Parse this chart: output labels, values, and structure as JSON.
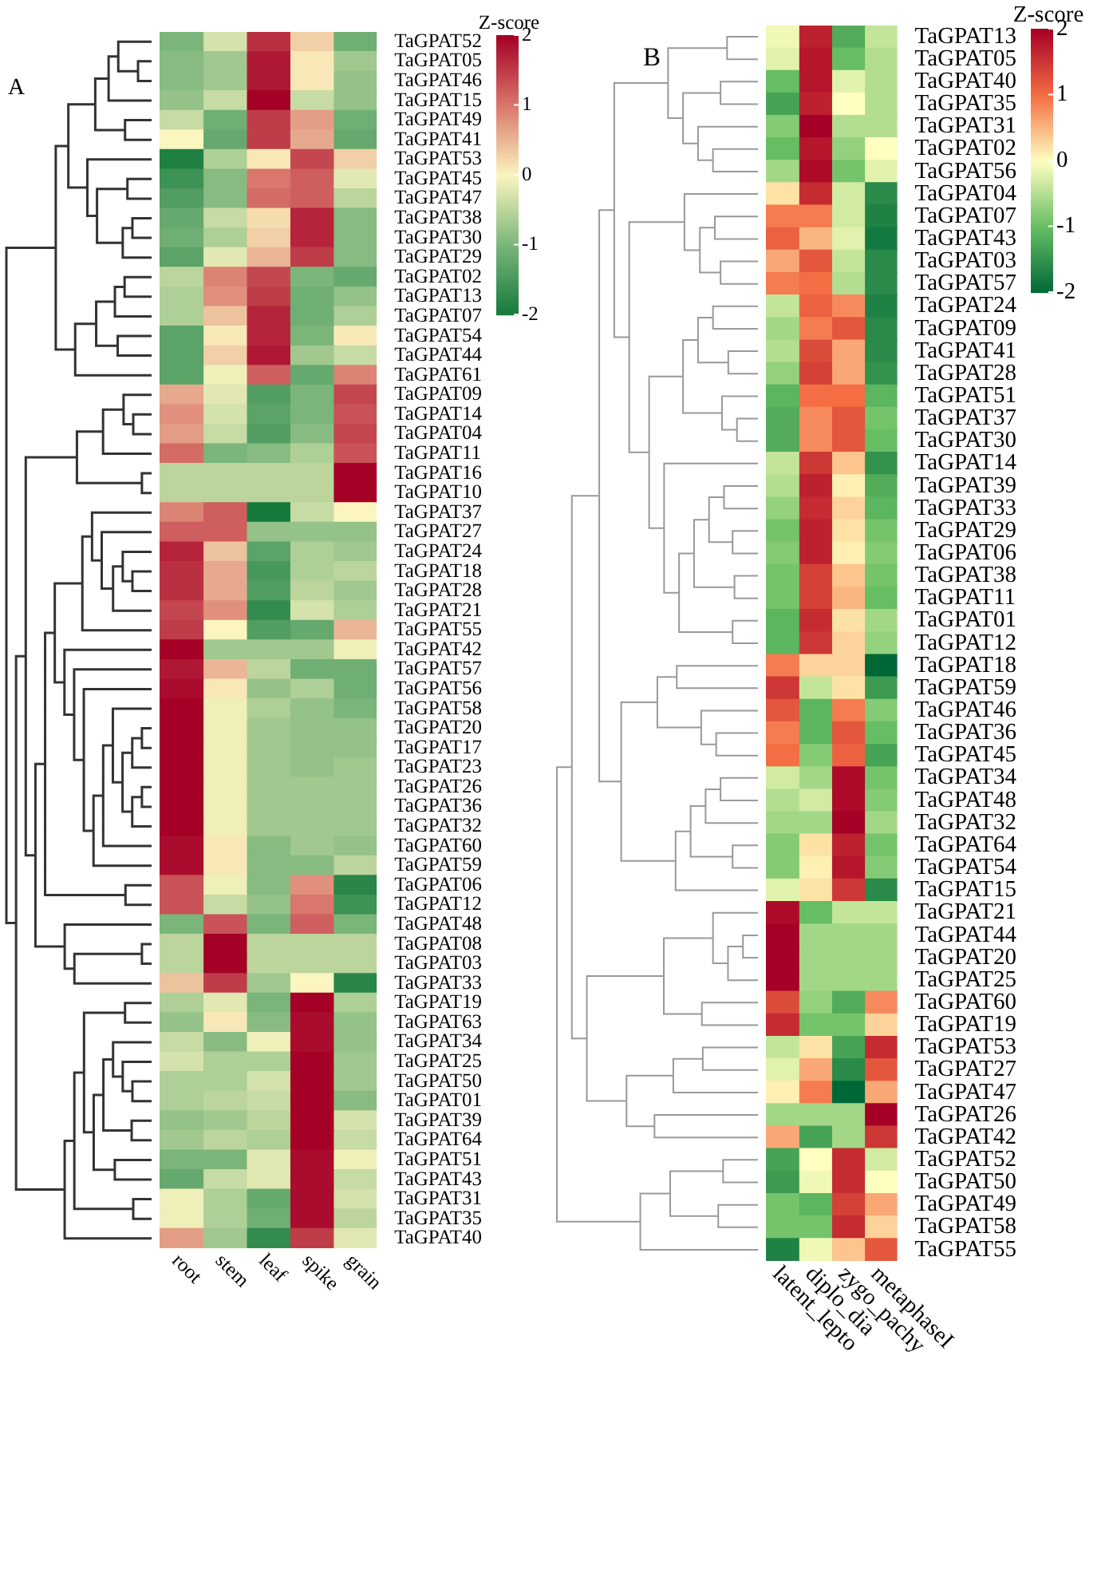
{
  "chart_data": [
    {
      "type": "heatmap",
      "title": "A",
      "clabel": "Z-score",
      "clim": [
        -2,
        2
      ],
      "cticks": [
        -2,
        -1,
        0,
        1,
        2
      ],
      "colors": [
        "#157a3c",
        "#7ab57a",
        "#fbf5c0",
        "#d9776c",
        "#a50026"
      ],
      "categories": [
        "root",
        "stem",
        "leaf",
        "spike",
        "grain"
      ],
      "y_categories": [
        "TaGPAT52",
        "TaGPAT05",
        "TaGPAT46",
        "TaGPAT15",
        "TaGPAT49",
        "TaGPAT41",
        "TaGPAT53",
        "TaGPAT45",
        "TaGPAT47",
        "TaGPAT38",
        "TaGPAT30",
        "TaGPAT29",
        "TaGPAT02",
        "TaGPAT13",
        "TaGPAT07",
        "TaGPAT54",
        "TaGPAT44",
        "TaGPAT61",
        "TaGPAT09",
        "TaGPAT14",
        "TaGPAT04",
        "TaGPAT11",
        "TaGPAT16",
        "TaGPAT10",
        "TaGPAT37",
        "TaGPAT27",
        "TaGPAT24",
        "TaGPAT18",
        "TaGPAT28",
        "TaGPAT21",
        "TaGPAT55",
        "TaGPAT42",
        "TaGPAT57",
        "TaGPAT56",
        "TaGPAT58",
        "TaGPAT20",
        "TaGPAT17",
        "TaGPAT23",
        "TaGPAT26",
        "TaGPAT36",
        "TaGPAT32",
        "TaGPAT60",
        "TaGPAT59",
        "TaGPAT06",
        "TaGPAT12",
        "TaGPAT48",
        "TaGPAT08",
        "TaGPAT03",
        "TaGPAT33",
        "TaGPAT19",
        "TaGPAT63",
        "TaGPAT34",
        "TaGPAT25",
        "TaGPAT50",
        "TaGPAT01",
        "TaGPAT39",
        "TaGPAT64",
        "TaGPAT51",
        "TaGPAT43",
        "TaGPAT31",
        "TaGPAT35",
        "TaGPAT40"
      ],
      "cells": [
        [
          -1,
          -0.3,
          1.6,
          0.3,
          -1.1
        ],
        [
          -0.9,
          -0.7,
          1.8,
          0.1,
          -0.7
        ],
        [
          -0.9,
          -0.7,
          1.8,
          0.1,
          -0.8
        ],
        [
          -0.8,
          -0.4,
          2,
          -0.4,
          -0.8
        ],
        [
          -0.4,
          -1.1,
          1.5,
          0.7,
          -1.1
        ],
        [
          0,
          -1.2,
          1.5,
          0.6,
          -1.2
        ],
        [
          -1.9,
          -0.6,
          0.1,
          1.4,
          0.3
        ],
        [
          -1.6,
          -0.9,
          1,
          1.2,
          -0.2
        ],
        [
          -1.4,
          -0.9,
          1.1,
          1.2,
          -0.5
        ],
        [
          -1.2,
          -0.4,
          0.2,
          1.7,
          -0.9
        ],
        [
          -1.1,
          -0.6,
          0.3,
          1.7,
          -0.9
        ],
        [
          -1.3,
          -0.2,
          0.5,
          1.5,
          -0.9
        ],
        [
          -0.5,
          0.9,
          1.4,
          -1,
          -1.2
        ],
        [
          -0.6,
          0.8,
          1.5,
          -1.1,
          -0.8
        ],
        [
          -0.6,
          0.4,
          1.7,
          -1.1,
          -0.6
        ],
        [
          -1.3,
          0.1,
          1.7,
          -1,
          0.1
        ],
        [
          -1.3,
          0.3,
          1.8,
          -0.7,
          -0.4
        ],
        [
          -1.3,
          -0.1,
          1.2,
          -1.2,
          0.9
        ],
        [
          0.6,
          -0.2,
          -1.4,
          -1,
          1.4
        ],
        [
          0.8,
          -0.3,
          -1.3,
          -1,
          1.3
        ],
        [
          0.7,
          -0.4,
          -1.4,
          -0.9,
          1.4
        ],
        [
          1.1,
          -1,
          -0.9,
          -0.6,
          1.3
        ],
        [
          -0.5,
          -0.5,
          -0.5,
          -0.5,
          2
        ],
        [
          -0.5,
          -0.5,
          -0.5,
          -0.5,
          2
        ],
        [
          0.9,
          1.2,
          -2,
          -0.4,
          0
        ],
        [
          1.2,
          1.2,
          -0.8,
          -0.8,
          -0.8
        ],
        [
          1.7,
          0.4,
          -1.3,
          -0.6,
          -0.7
        ],
        [
          1.6,
          0.6,
          -1.5,
          -0.6,
          -0.5
        ],
        [
          1.6,
          0.6,
          -1.4,
          -0.5,
          -0.7
        ],
        [
          1.4,
          0.8,
          -1.7,
          -0.3,
          -0.6
        ],
        [
          1.5,
          0,
          -1.4,
          -1.2,
          0.5
        ],
        [
          2,
          -0.7,
          -0.7,
          -0.7,
          -0.1
        ],
        [
          1.8,
          0.5,
          -0.5,
          -1.1,
          -1.1
        ],
        [
          1.9,
          0.1,
          -0.8,
          -0.6,
          -1.1
        ],
        [
          2,
          -0.1,
          -0.6,
          -0.8,
          -1
        ],
        [
          2,
          -0.1,
          -0.7,
          -0.8,
          -0.8
        ],
        [
          2,
          -0.1,
          -0.7,
          -0.8,
          -0.8
        ],
        [
          2,
          -0.1,
          -0.7,
          -0.8,
          -0.7
        ],
        [
          2,
          -0.1,
          -0.7,
          -0.7,
          -0.7
        ],
        [
          2,
          -0.1,
          -0.7,
          -0.7,
          -0.7
        ],
        [
          2,
          -0.1,
          -0.7,
          -0.7,
          -0.7
        ],
        [
          1.9,
          0.1,
          -0.9,
          -0.7,
          -0.8
        ],
        [
          1.9,
          0.1,
          -0.9,
          -0.9,
          -0.5
        ],
        [
          1.3,
          -0.1,
          -0.9,
          0.8,
          -1.8
        ],
        [
          1.3,
          -0.4,
          -0.8,
          1,
          -1.6
        ],
        [
          -1,
          1.3,
          -1,
          1.2,
          -1
        ],
        [
          -0.5,
          2,
          -0.5,
          -0.5,
          -0.5
        ],
        [
          -0.5,
          2,
          -0.5,
          -0.5,
          -0.5
        ],
        [
          0.4,
          1.5,
          -0.7,
          0,
          -1.8
        ],
        [
          -0.6,
          -0.2,
          -1,
          2,
          -0.6
        ],
        [
          -0.8,
          0.1,
          -0.9,
          1.9,
          -0.8
        ],
        [
          -0.4,
          -0.9,
          -0.1,
          1.9,
          -0.8
        ],
        [
          -0.3,
          -0.6,
          -0.6,
          2,
          -0.7
        ],
        [
          -0.6,
          -0.6,
          -0.3,
          2,
          -0.7
        ],
        [
          -0.6,
          -0.5,
          -0.4,
          2,
          -0.9
        ],
        [
          -0.8,
          -0.7,
          -0.5,
          2,
          -0.3
        ],
        [
          -0.7,
          -0.5,
          -0.6,
          2,
          -0.4
        ],
        [
          -1,
          -1,
          -0.2,
          1.9,
          -0.1
        ],
        [
          -1.2,
          -0.4,
          -0.2,
          1.9,
          -0.4
        ],
        [
          -0.1,
          -0.6,
          -1.2,
          1.9,
          -0.3
        ],
        [
          -0.1,
          -0.6,
          -1.1,
          1.9,
          -0.5
        ],
        [
          0.7,
          -0.7,
          -1.7,
          1.5,
          -0.2
        ]
      ]
    },
    {
      "type": "heatmap",
      "title": "B",
      "clabel": "Z-score",
      "clim": [
        -2,
        2
      ],
      "cticks": [
        -2,
        -1,
        0,
        1,
        2
      ],
      "colors": [
        "#006837",
        "#66bd63",
        "#ffffbf",
        "#f46d43",
        "#a50026"
      ],
      "categories": [
        "latent_lepto",
        "diplo_dia",
        "zygo_pachy",
        "metaphaseI"
      ],
      "y_categories": [
        "TaGPAT13",
        "TaGPAT05",
        "TaGPAT40",
        "TaGPAT35",
        "TaGPAT31",
        "TaGPAT02",
        "TaGPAT56",
        "TaGPAT04",
        "TaGPAT07",
        "TaGPAT43",
        "TaGPAT03",
        "TaGPAT57",
        "TaGPAT24",
        "TaGPAT09",
        "TaGPAT41",
        "TaGPAT28",
        "TaGPAT51",
        "TaGPAT37",
        "TaGPAT30",
        "TaGPAT14",
        "TaGPAT39",
        "TaGPAT33",
        "TaGPAT29",
        "TaGPAT06",
        "TaGPAT38",
        "TaGPAT11",
        "TaGPAT01",
        "TaGPAT12",
        "TaGPAT18",
        "TaGPAT59",
        "TaGPAT46",
        "TaGPAT36",
        "TaGPAT45",
        "TaGPAT34",
        "TaGPAT48",
        "TaGPAT32",
        "TaGPAT64",
        "TaGPAT54",
        "TaGPAT15",
        "TaGPAT21",
        "TaGPAT44",
        "TaGPAT20",
        "TaGPAT25",
        "TaGPAT60",
        "TaGPAT19",
        "TaGPAT53",
        "TaGPAT27",
        "TaGPAT47",
        "TaGPAT26",
        "TaGPAT42",
        "TaGPAT52",
        "TaGPAT50",
        "TaGPAT49",
        "TaGPAT58",
        "TaGPAT55"
      ],
      "cells": [
        [
          -0.1,
          1.7,
          -1.2,
          -0.4
        ],
        [
          -0.2,
          1.8,
          -1,
          -0.5
        ],
        [
          -1,
          1.8,
          -0.2,
          -0.5
        ],
        [
          -1.3,
          1.7,
          0,
          -0.5
        ],
        [
          -0.8,
          2,
          -0.5,
          -0.5
        ],
        [
          -1,
          1.8,
          -0.7,
          0
        ],
        [
          -0.6,
          1.9,
          -0.9,
          -0.2
        ],
        [
          0.2,
          1.6,
          -0.3,
          -1.6
        ],
        [
          0.9,
          0.9,
          -0.3,
          -1.7
        ],
        [
          1.1,
          0.5,
          -0.2,
          -1.8
        ],
        [
          0.6,
          1.2,
          -0.4,
          -1.6
        ],
        [
          0.9,
          1,
          -0.5,
          -1.6
        ],
        [
          -0.4,
          1.1,
          0.8,
          -1.7
        ],
        [
          -0.6,
          0.9,
          1.2,
          -1.6
        ],
        [
          -0.5,
          1.3,
          0.6,
          -1.6
        ],
        [
          -0.7,
          1.4,
          0.6,
          -1.5
        ],
        [
          -1.1,
          1,
          1,
          -1.1
        ],
        [
          -1.2,
          0.8,
          1.2,
          -0.9
        ],
        [
          -1.2,
          0.8,
          1.2,
          -1
        ],
        [
          -0.4,
          1.5,
          0.4,
          -1.5
        ],
        [
          -0.5,
          1.7,
          0.1,
          -1.2
        ],
        [
          -0.7,
          1.6,
          0.3,
          -1.1
        ],
        [
          -0.9,
          1.7,
          0.2,
          -0.9
        ],
        [
          -0.8,
          1.7,
          0.1,
          -0.8
        ],
        [
          -0.9,
          1.4,
          0.4,
          -0.9
        ],
        [
          -0.9,
          1.4,
          0.5,
          -1
        ],
        [
          -1.1,
          1.6,
          0.2,
          -0.6
        ],
        [
          -1.1,
          1.5,
          0.3,
          -0.7
        ],
        [
          0.9,
          0.3,
          0.3,
          -2
        ],
        [
          1.5,
          -0.4,
          0.2,
          -1.4
        ],
        [
          1.2,
          -1.1,
          0.9,
          -0.8
        ],
        [
          0.9,
          -1.1,
          1.2,
          -1
        ],
        [
          1,
          -0.8,
          1.1,
          -1.3
        ],
        [
          -0.3,
          -0.6,
          1.9,
          -0.9
        ],
        [
          -0.5,
          -0.3,
          1.9,
          -0.8
        ],
        [
          -0.6,
          -0.6,
          2,
          -0.6
        ],
        [
          -0.8,
          0.2,
          1.7,
          -0.9
        ],
        [
          -0.8,
          0.1,
          1.8,
          -0.8
        ],
        [
          -0.2,
          0.2,
          1.5,
          -1.6
        ],
        [
          1.9,
          -1,
          -0.4,
          -0.4
        ],
        [
          2,
          -0.6,
          -0.6,
          -0.6
        ],
        [
          2,
          -0.6,
          -0.6,
          -0.6
        ],
        [
          2,
          -0.6,
          -0.6,
          -0.6
        ],
        [
          1.3,
          -0.7,
          -1.2,
          0.8
        ],
        [
          1.6,
          -0.9,
          -0.9,
          0.3
        ],
        [
          -0.4,
          0.2,
          -1.3,
          1.6
        ],
        [
          -0.2,
          0.6,
          -1.6,
          1.2
        ],
        [
          0.1,
          0.9,
          -2,
          0.6
        ],
        [
          -0.6,
          -0.6,
          -0.6,
          2
        ],
        [
          0.6,
          -1.3,
          -0.6,
          1.5
        ],
        [
          -1.3,
          0,
          1.6,
          -0.3
        ],
        [
          -1.4,
          -0.1,
          1.6,
          0
        ],
        [
          -0.9,
          -1.1,
          1.4,
          0.6
        ],
        [
          -0.9,
          -0.9,
          1.6,
          0.3
        ],
        [
          -1.7,
          -0.1,
          0.4,
          1.2
        ]
      ]
    }
  ]
}
